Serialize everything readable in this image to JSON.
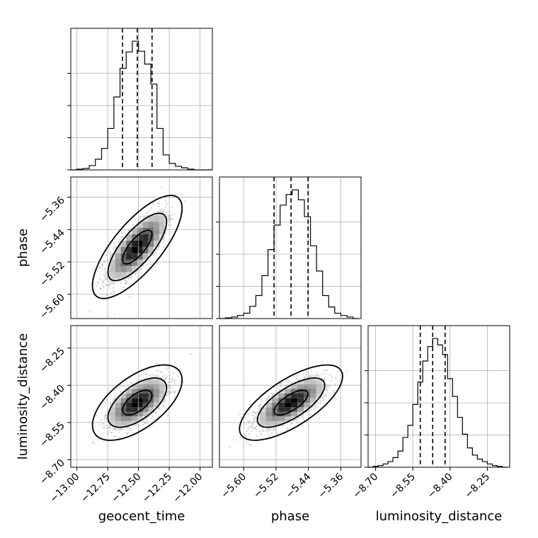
{
  "chart_data": {
    "type": "corner",
    "parameters": [
      "geocent_time",
      "phase",
      "luminosity_distance"
    ],
    "ranges": {
      "geocent_time": [
        -13.05,
        -11.9
      ],
      "phase": [
        -5.66,
        -5.31
      ],
      "luminosity_distance": [
        -8.73,
        -8.16
      ]
    },
    "ticks": {
      "geocent_time": [
        -13.0,
        -12.75,
        -12.5,
        -12.25,
        -12.0
      ],
      "phase": [
        -5.6,
        -5.52,
        -5.44,
        -5.36
      ],
      "luminosity_distance": [
        -8.7,
        -8.55,
        -8.4,
        -8.25
      ]
    },
    "tick_labels": {
      "geocent_time": [
        "−13.00",
        "−12.75",
        "−12.50",
        "−12.25",
        "−12.00"
      ],
      "phase": [
        "−5.60",
        "−5.52",
        "−5.44",
        "−5.36"
      ],
      "luminosity_distance": [
        "−8.70",
        "−8.55",
        "−8.40",
        "−8.25"
      ]
    },
    "quantiles": {
      "geocent_time": [
        -12.63,
        -12.51,
        -12.39
      ],
      "phase": [
        -5.525,
        -5.483,
        -5.441
      ],
      "luminosity_distance": [
        -8.52,
        -8.47,
        -8.42
      ]
    },
    "histograms": {
      "geocent_time": {
        "edges": [
          -13.05,
          -13.0,
          -12.95,
          -12.9,
          -12.85,
          -12.8,
          -12.75,
          -12.7,
          -12.65,
          -12.6,
          -12.55,
          -12.5,
          -12.45,
          -12.4,
          -12.35,
          -12.3,
          -12.25,
          -12.2,
          -12.15,
          -12.1,
          -12.05,
          -12.0,
          -11.95,
          -11.9
        ],
        "counts": [
          0,
          1,
          2,
          6,
          15,
          30,
          58,
          102,
          142,
          165,
          180,
          166,
          148,
          120,
          58,
          21,
          9,
          5,
          3,
          1,
          0,
          0,
          0
        ]
      },
      "phase": {
        "edges": [
          -5.66,
          -5.645,
          -5.63,
          -5.615,
          -5.6,
          -5.585,
          -5.57,
          -5.555,
          -5.54,
          -5.525,
          -5.51,
          -5.495,
          -5.48,
          -5.465,
          -5.45,
          -5.435,
          -5.42,
          -5.405,
          -5.39,
          -5.375,
          -5.36,
          -5.345,
          -5.33,
          -5.315
        ],
        "counts": [
          0,
          1,
          2,
          4,
          7,
          16,
          30,
          56,
          90,
          122,
          148,
          162,
          168,
          155,
          133,
          95,
          62,
          30,
          15,
          7,
          4,
          2,
          0
        ]
      },
      "luminosity_distance": {
        "edges": [
          -8.73,
          -8.71,
          -8.69,
          -8.67,
          -8.65,
          -8.63,
          -8.61,
          -8.59,
          -8.57,
          -8.55,
          -8.53,
          -8.51,
          -8.49,
          -8.47,
          -8.45,
          -8.43,
          -8.41,
          -8.39,
          -8.37,
          -8.35,
          -8.33,
          -8.31,
          -8.29,
          -8.27,
          -8.25,
          -8.23,
          -8.21,
          -8.19,
          -8.17
        ],
        "counts": [
          0,
          1,
          2,
          4,
          7,
          12,
          20,
          37,
          52,
          78,
          106,
          132,
          150,
          160,
          152,
          140,
          110,
          88,
          62,
          41,
          24,
          15,
          10,
          7,
          4,
          2,
          1,
          0
        ]
      }
    },
    "correlations": {
      "phase|geocent_time": 0.75,
      "luminosity_distance|geocent_time": 0.6,
      "luminosity_distance|phase": 0.7
    },
    "density_levels": [
      0.39,
      0.86,
      0.99
    ],
    "xlabels": [
      "geocent_time",
      "phase",
      "luminosity_distance"
    ],
    "ylabels": [
      "",
      "phase",
      "luminosity_distance"
    ],
    "colors": {
      "line": "#000000",
      "grid": "#b0b0b0",
      "points": "#9a9a9a"
    },
    "grid": true
  }
}
